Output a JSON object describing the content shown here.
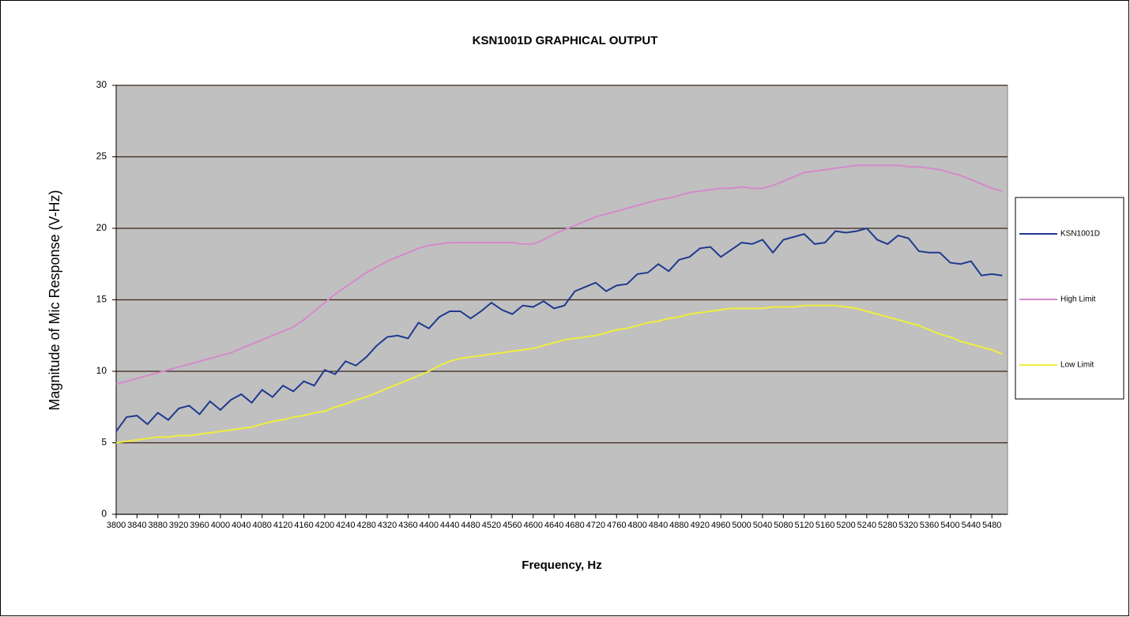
{
  "chart_data": {
    "type": "line",
    "title": "KSN1001D GRAPHICAL OUTPUT",
    "x_label": "Frequency, Hz",
    "y_label": "Magnitude of Mic Response (V-Hz)",
    "x": [
      3800,
      3820,
      3840,
      3860,
      3880,
      3900,
      3920,
      3940,
      3960,
      3980,
      4000,
      4020,
      4040,
      4060,
      4080,
      4100,
      4120,
      4140,
      4160,
      4180,
      4200,
      4220,
      4240,
      4260,
      4280,
      4300,
      4320,
      4340,
      4360,
      4380,
      4400,
      4420,
      4440,
      4460,
      4480,
      4500,
      4520,
      4540,
      4560,
      4580,
      4600,
      4620,
      4640,
      4660,
      4680,
      4700,
      4720,
      4740,
      4760,
      4780,
      4800,
      4820,
      4840,
      4860,
      4880,
      4900,
      4920,
      4940,
      4960,
      4980,
      5000,
      5020,
      5040,
      5060,
      5080,
      5100,
      5120,
      5140,
      5160,
      5180,
      5200,
      5220,
      5240,
      5260,
      5280,
      5300,
      5320,
      5340,
      5360,
      5380,
      5400,
      5420,
      5440,
      5460,
      5480,
      5500
    ],
    "series": [
      {
        "name": "KSN1001D",
        "color": "#1f3a8f",
        "values": [
          5.8,
          6.8,
          6.9,
          6.3,
          7.1,
          6.6,
          7.4,
          7.6,
          7.0,
          7.9,
          7.3,
          8.0,
          8.4,
          7.8,
          8.7,
          8.2,
          9.0,
          8.6,
          9.3,
          9.0,
          10.1,
          9.8,
          10.7,
          10.4,
          11.0,
          11.8,
          12.4,
          12.5,
          12.3,
          13.4,
          13.0,
          13.8,
          14.2,
          14.2,
          13.7,
          14.2,
          14.8,
          14.3,
          14.0,
          14.6,
          14.5,
          14.9,
          14.4,
          14.6,
          15.6,
          15.9,
          16.2,
          15.6,
          16.0,
          16.1,
          16.8,
          16.9,
          17.5,
          17.0,
          17.8,
          18.0,
          18.6,
          18.7,
          18.0,
          18.5,
          19.0,
          18.9,
          19.2,
          18.3,
          19.2,
          19.4,
          19.6,
          18.9,
          19.0,
          19.8,
          19.7,
          19.8,
          20.0,
          19.2,
          18.9,
          19.5,
          19.3,
          18.4,
          18.3,
          18.3,
          17.6,
          17.5,
          17.7,
          16.7,
          16.8,
          16.7
        ]
      },
      {
        "name": "High Limit",
        "color": "#d48acb",
        "values": [
          9.1,
          9.3,
          9.5,
          9.7,
          9.9,
          10.1,
          10.3,
          10.5,
          10.7,
          10.9,
          11.1,
          11.3,
          11.6,
          11.9,
          12.2,
          12.5,
          12.8,
          13.1,
          13.6,
          14.2,
          14.8,
          15.4,
          15.9,
          16.4,
          16.9,
          17.3,
          17.7,
          18.0,
          18.3,
          18.6,
          18.8,
          18.9,
          19.0,
          19.0,
          19.0,
          19.0,
          19.0,
          19.0,
          19.0,
          18.9,
          18.9,
          19.2,
          19.6,
          19.9,
          20.2,
          20.5,
          20.8,
          21.0,
          21.2,
          21.4,
          21.6,
          21.8,
          22.0,
          22.1,
          22.3,
          22.5,
          22.6,
          22.7,
          22.8,
          22.8,
          22.9,
          22.8,
          22.8,
          23.0,
          23.3,
          23.6,
          23.9,
          24.0,
          24.1,
          24.2,
          24.3,
          24.4,
          24.4,
          24.4,
          24.4,
          24.4,
          24.3,
          24.3,
          24.2,
          24.1,
          23.9,
          23.7,
          23.4,
          23.1,
          22.8,
          22.6
        ]
      },
      {
        "name": "Low Limit",
        "color": "#eeee3c",
        "values": [
          5.0,
          5.1,
          5.2,
          5.3,
          5.4,
          5.4,
          5.5,
          5.5,
          5.6,
          5.7,
          5.8,
          5.9,
          6.0,
          6.1,
          6.3,
          6.5,
          6.6,
          6.8,
          6.9,
          7.1,
          7.2,
          7.5,
          7.7,
          8.0,
          8.2,
          8.5,
          8.8,
          9.1,
          9.4,
          9.7,
          10.0,
          10.4,
          10.7,
          10.9,
          11.0,
          11.1,
          11.2,
          11.3,
          11.4,
          11.5,
          11.6,
          11.8,
          12.0,
          12.2,
          12.3,
          12.4,
          12.5,
          12.7,
          12.9,
          13.0,
          13.2,
          13.4,
          13.5,
          13.7,
          13.8,
          14.0,
          14.1,
          14.2,
          14.3,
          14.4,
          14.4,
          14.4,
          14.4,
          14.5,
          14.5,
          14.5,
          14.6,
          14.6,
          14.6,
          14.6,
          14.5,
          14.4,
          14.2,
          14.0,
          13.8,
          13.6,
          13.4,
          13.2,
          12.9,
          12.6,
          12.4,
          12.1,
          11.9,
          11.7,
          11.5,
          11.2
        ]
      }
    ],
    "xlim": [
      3800,
      5510
    ],
    "xticks": [
      3800,
      3840,
      3880,
      3920,
      3960,
      4000,
      4040,
      4080,
      4120,
      4160,
      4200,
      4240,
      4280,
      4320,
      4360,
      4400,
      4440,
      4480,
      4520,
      4560,
      4600,
      4640,
      4680,
      4720,
      4760,
      4800,
      4840,
      4880,
      4920,
      4960,
      5000,
      5040,
      5080,
      5120,
      5160,
      5200,
      5240,
      5280,
      5320,
      5360,
      5400,
      5440,
      5480
    ],
    "ylim": [
      0,
      30
    ],
    "yticks": [
      0,
      5,
      10,
      15,
      20,
      25,
      30
    ],
    "grid": true,
    "legend": "right"
  }
}
